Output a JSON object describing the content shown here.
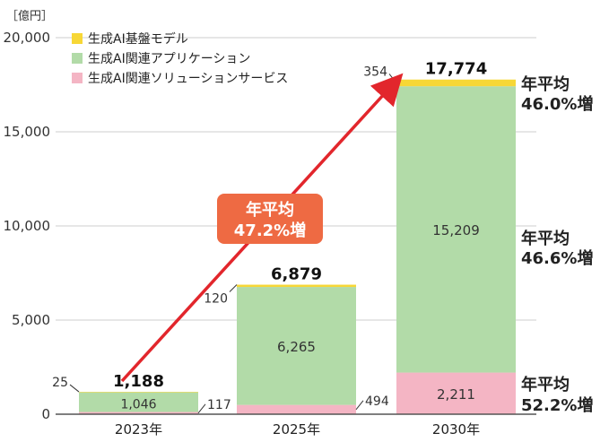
{
  "chart_data": {
    "type": "bar",
    "stacked": true,
    "unit": "［億円］",
    "categories": [
      "2023年",
      "2025年",
      "2030年"
    ],
    "series": [
      {
        "name": "生成AI関連ソリューションサービス",
        "color": "#f4b5c4",
        "values": [
          117,
          494,
          2211
        ]
      },
      {
        "name": "生成AI関連アプリケーション",
        "color": "#b2dba8",
        "values": [
          1046,
          6265,
          15209
        ]
      },
      {
        "name": "生成AI基盤モデル",
        "color": "#f7d736",
        "values": [
          25,
          120,
          354
        ]
      }
    ],
    "legend_order": [
      "生成AI基盤モデル",
      "生成AI関連アプリケーション",
      "生成AI関連ソリューションサービス"
    ],
    "legend_position": "top-left",
    "totals": [
      "1,188",
      "6,879",
      "17,774"
    ],
    "segment_labels": {
      "inside": [
        "1,046",
        "6,265",
        "15,209",
        "2,211"
      ],
      "outside": [
        "25",
        "117",
        "120",
        "494",
        "354"
      ]
    },
    "y_ticks": [
      "0",
      "5,000",
      "10,000",
      "15,000",
      "20,000"
    ],
    "ylim": [
      0,
      20000
    ],
    "grid": true,
    "cagr_arrow": {
      "line1": "年平均",
      "line2": "47.2%増",
      "color": "#ee6a43"
    },
    "cagr_right": [
      {
        "line1": "年平均",
        "line2": "46.0%増"
      },
      {
        "line1": "年平均",
        "line2": "46.6%増"
      },
      {
        "line1": "年平均",
        "line2": "52.2%増"
      }
    ]
  }
}
